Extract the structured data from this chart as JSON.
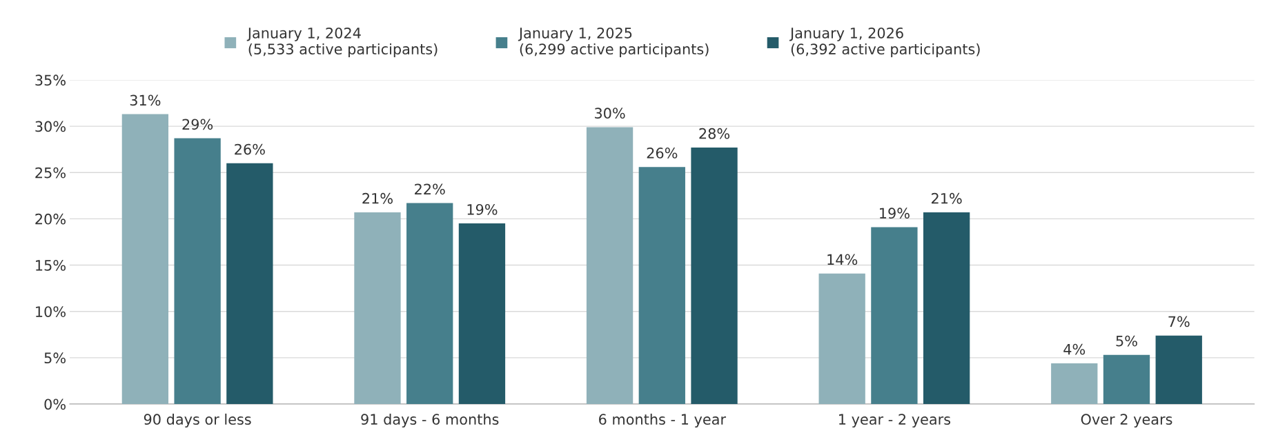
{
  "chart_data": {
    "type": "bar",
    "categories": [
      "90 days or less",
      "91 days - 6 months",
      "6 months - 1 year",
      "1 year - 2 years",
      "Over 2 years"
    ],
    "series": [
      {
        "name": "January 1, 2024\n(5,533 active participants)",
        "color": "#8fb1b9",
        "values": [
          31.3,
          20.7,
          29.9,
          14.1,
          4.4
        ],
        "value_labels": [
          "31%",
          "21%",
          "30%",
          "14%",
          "4%"
        ]
      },
      {
        "name": "January 1, 2025\n(6,299 active participants)",
        "color": "#467f8c",
        "values": [
          28.7,
          21.7,
          25.6,
          19.1,
          5.3
        ],
        "value_labels": [
          "29%",
          "22%",
          "26%",
          "19%",
          "5%"
        ]
      },
      {
        "name": "January 1, 2026\n(6,392 active participants)",
        "color": "#245b69",
        "values": [
          26.0,
          19.5,
          27.7,
          20.7,
          7.4
        ],
        "value_labels": [
          "26%",
          "19%",
          "28%",
          "21%",
          "7%"
        ]
      }
    ],
    "ylim": [
      0,
      35
    ],
    "yticks": [
      {
        "value": 0,
        "label": "0%"
      },
      {
        "value": 5,
        "label": "5%"
      },
      {
        "value": 10,
        "label": "10%"
      },
      {
        "value": 15,
        "label": "15%"
      },
      {
        "value": 20,
        "label": "20%"
      },
      {
        "value": 25,
        "label": "25%"
      },
      {
        "value": 30,
        "label": "30%"
      },
      {
        "value": 35,
        "label": "35%"
      }
    ],
    "grid": "y",
    "legend": "top"
  }
}
